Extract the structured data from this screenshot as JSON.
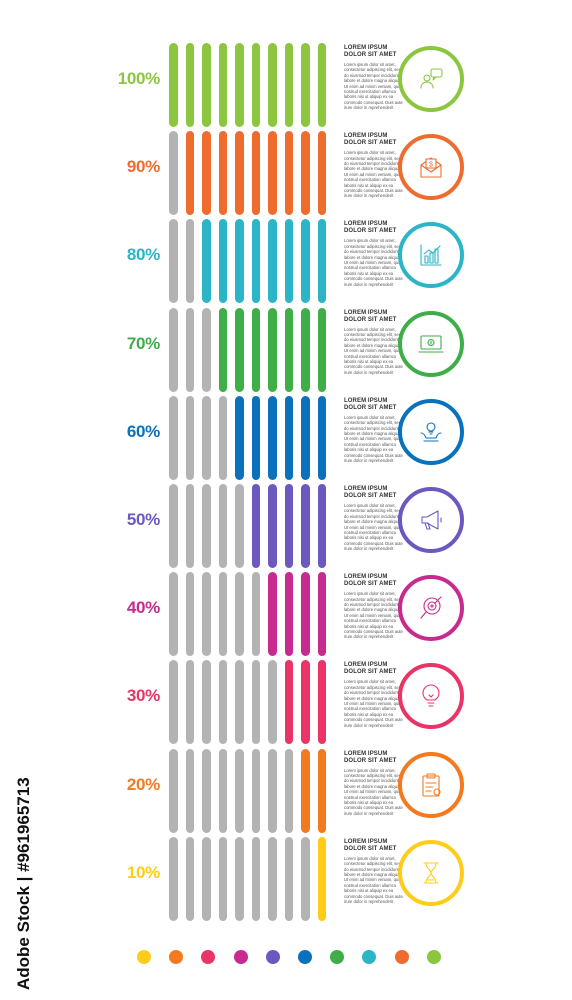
{
  "rows": [
    {
      "percent_label": "100%",
      "value": 100,
      "color": "#8cc63f",
      "icon": "customer-chat-icon",
      "title_line1": "LOREM IPSUM",
      "title_line2": "DOLOR SIT AMET",
      "body": "Lorem ipsum dolor sit amet, consectetur adipiscing elit, sed do eiusmod tempor incididunt ut labore et dolore magna aliqua. Ut enim ad minim veniam, quis nostrud exercitation ullamco laboris nisi ut aliquip ex ea commodo consequat. Duis aute irure dolor in reprehenderit"
    },
    {
      "percent_label": "90%",
      "value": 90,
      "color": "#ef6c2f",
      "icon": "envelope-dollar-icon",
      "title_line1": "LOREM IPSUM",
      "title_line2": "DOLOR SIT AMET",
      "body": "Lorem ipsum dolor sit amet, consectetur adipiscing elit, sed do eiusmod tempor incididunt ut labore et dolore magna aliqua. Ut enim ad minim veniam, quis nostrud exercitation ullamco laboris nisi ut aliquip ex ea commodo consequat. Duis aute irure dolor in reprehenderit"
    },
    {
      "percent_label": "80%",
      "value": 80,
      "color": "#2bb5c6",
      "icon": "growth-chart-icon",
      "title_line1": "LOREM IPSUM",
      "title_line2": "DOLOR SIT AMET",
      "body": "Lorem ipsum dolor sit amet, consectetur adipiscing elit, sed do eiusmod tempor incididunt ut labore et dolore magna aliqua. Ut enim ad minim veniam, quis nostrud exercitation ullamco laboris nisi ut aliquip ex ea commodo consequat. Duis aute irure dolor in reprehenderit"
    },
    {
      "percent_label": "70%",
      "value": 70,
      "color": "#3fae49",
      "icon": "laptop-money-icon",
      "title_line1": "LOREM IPSUM",
      "title_line2": "DOLOR SIT AMET",
      "body": "Lorem ipsum dolor sit amet, consectetur adipiscing elit, sed do eiusmod tempor incididunt ut labore et dolore magna aliqua. Ut enim ad minim veniam, quis nostrud exercitation ullamco laboris nisi ut aliquip ex ea commodo consequat. Duis aute irure dolor in reprehenderit"
    },
    {
      "percent_label": "60%",
      "value": 60,
      "color": "#0a72bc",
      "icon": "hands-idea-icon",
      "title_line1": "LOREM IPSUM",
      "title_line2": "DOLOR SIT AMET",
      "body": "Lorem ipsum dolor sit amet, consectetur adipiscing elit, sed do eiusmod tempor incididunt ut labore et dolore magna aliqua. Ut enim ad minim veniam, quis nostrud exercitation ullamco laboris nisi ut aliquip ex ea commodo consequat. Duis aute irure dolor in reprehenderit"
    },
    {
      "percent_label": "50%",
      "value": 50,
      "color": "#6d58c0",
      "icon": "megaphone-icon",
      "title_line1": "LOREM IPSUM",
      "title_line2": "DOLOR SIT AMET",
      "body": "Lorem ipsum dolor sit amet, consectetur adipiscing elit, sed do eiusmod tempor incididunt ut labore et dolore magna aliqua. Ut enim ad minim veniam, quis nostrud exercitation ullamco laboris nisi ut aliquip ex ea commodo consequat. Duis aute irure dolor in reprehenderit"
    },
    {
      "percent_label": "40%",
      "value": 40,
      "color": "#c72b8f",
      "icon": "target-search-icon",
      "title_line1": "LOREM IPSUM",
      "title_line2": "DOLOR SIT AMET",
      "body": "Lorem ipsum dolor sit amet, consectetur adipiscing elit, sed do eiusmod tempor incididunt ut labore et dolore magna aliqua. Ut enim ad minim veniam, quis nostrud exercitation ullamco laboris nisi ut aliquip ex ea commodo consequat. Duis aute irure dolor in reprehenderit"
    },
    {
      "percent_label": "30%",
      "value": 30,
      "color": "#ea3367",
      "icon": "lightbulb-icon",
      "title_line1": "LOREM IPSUM",
      "title_line2": "DOLOR SIT AMET",
      "body": "Lorem ipsum dolor sit amet, consectetur adipiscing elit, sed do eiusmod tempor incididunt ut labore et dolore magna aliqua. Ut enim ad minim veniam, quis nostrud exercitation ullamco laboris nisi ut aliquip ex ea commodo consequat. Duis aute irure dolor in reprehenderit"
    },
    {
      "percent_label": "20%",
      "value": 20,
      "color": "#f47a1f",
      "icon": "clipboard-icon",
      "title_line1": "LOREM IPSUM",
      "title_line2": "DOLOR SIT AMET",
      "body": "Lorem ipsum dolor sit amet, consectetur adipiscing elit, sed do eiusmod tempor incididunt ut labore et dolore magna aliqua. Ut enim ad minim veniam, quis nostrud exercitation ullamco laboris nisi ut aliquip ex ea commodo consequat. Duis aute irure dolor in reprehenderit"
    },
    {
      "percent_label": "10%",
      "value": 10,
      "color": "#ffcc1a",
      "icon": "hourglass-icon",
      "title_line1": "LOREM IPSUM",
      "title_line2": "DOLOR SIT AMET",
      "body": "Lorem ipsum dolor sit amet, consectetur adipiscing elit, sed do eiusmod tempor incididunt ut labore et dolore magna aliqua. Ut enim ad minim veniam, quis nostrud exercitation ullamco laboris nisi ut aliquip ex ea commodo consequat. Duis aute irure dolor in reprehenderit"
    }
  ],
  "bars_per_row": 10,
  "inactive_bar_color": "#b3b3b3",
  "legend_dots": [
    "#ffcc1a",
    "#f47a1f",
    "#ea3367",
    "#c72b8f",
    "#6d58c0",
    "#0a72bc",
    "#3fae49",
    "#2bb5c6",
    "#ef6c2f",
    "#8cc63f"
  ],
  "watermark": "Adobe Stock | #961965713"
}
